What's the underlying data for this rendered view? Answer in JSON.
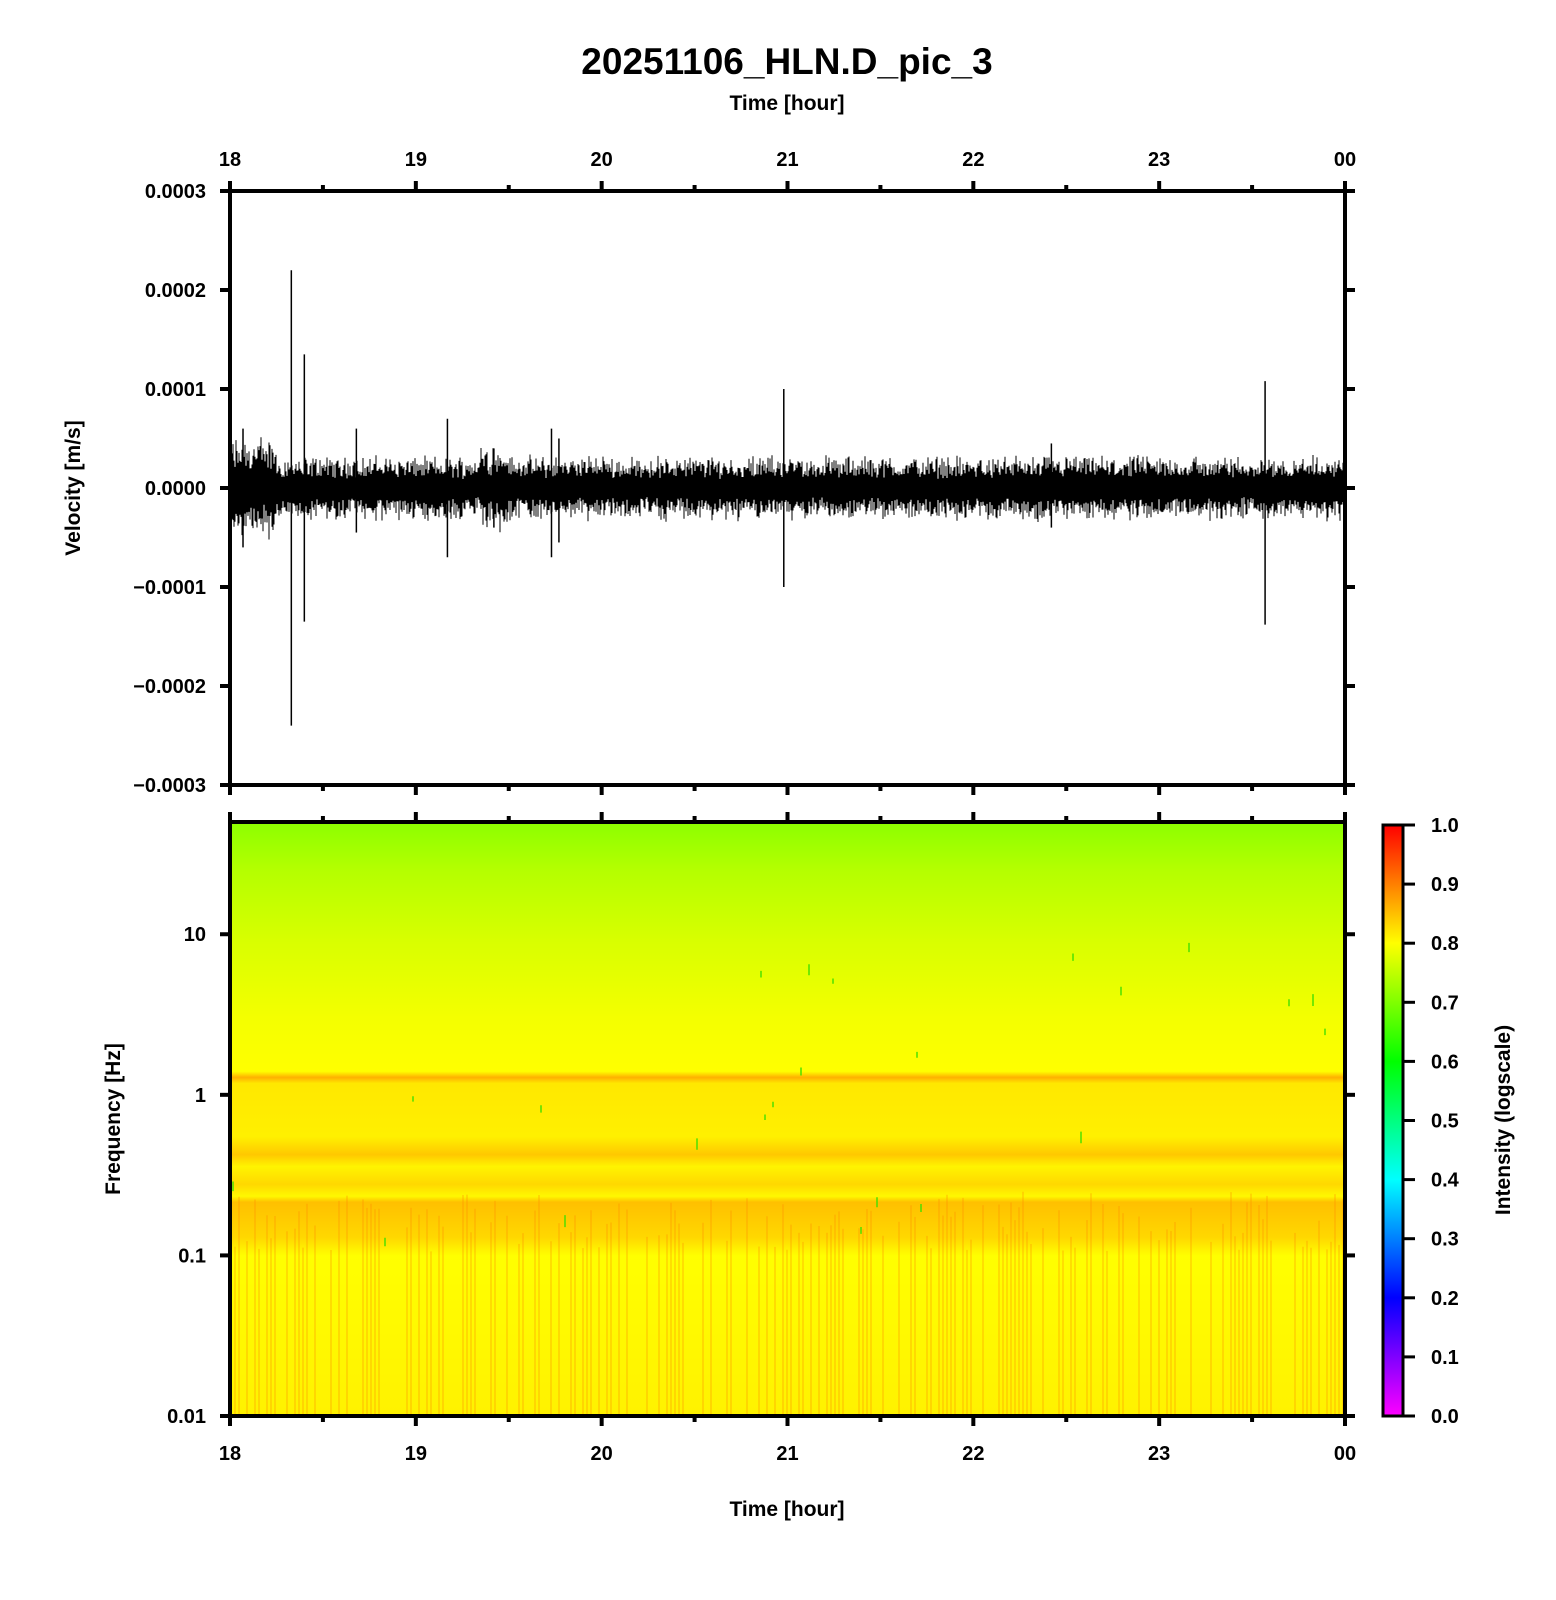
{
  "chart_data": [
    {
      "type": "line",
      "title": "20251106_HLN.D_pic_3",
      "xlabel_top": "Time [hour]",
      "ylabel": "Velocity [m/s]",
      "x_ticks": [
        "18",
        "19",
        "20",
        "21",
        "22",
        "23",
        "00"
      ],
      "x_range_hours": [
        18,
        24
      ],
      "ylim": [
        -0.0003,
        0.0003
      ],
      "y_ticks": [
        "0.0003",
        "0.0002",
        "0.0001",
        "0.0000",
        "−0.0001",
        "−0.0002",
        "−0.0003"
      ],
      "series": [
        {
          "background_amplitude": 2e-05,
          "spikes": [
            {
              "x": 18.33,
              "max": 0.00022,
              "min": -0.00024
            },
            {
              "x": 18.4,
              "max": 0.000135,
              "min": -0.000135
            },
            {
              "x": 18.07,
              "max": 6e-05,
              "min": -6e-05
            },
            {
              "x": 18.68,
              "max": 6e-05,
              "min": -4.5e-05
            },
            {
              "x": 19.17,
              "max": 7e-05,
              "min": -7e-05
            },
            {
              "x": 19.42,
              "max": 4e-05,
              "min": -4e-05
            },
            {
              "x": 19.73,
              "max": 6e-05,
              "min": -7e-05
            },
            {
              "x": 19.77,
              "max": 5e-05,
              "min": -5.5e-05
            },
            {
              "x": 20.98,
              "max": 0.0001,
              "min": -0.0001
            },
            {
              "x": 22.42,
              "max": 4.5e-05,
              "min": -4e-05
            },
            {
              "x": 23.57,
              "max": 0.000108,
              "min": -0.000138
            }
          ]
        }
      ]
    },
    {
      "type": "heatmap",
      "xlabel": "Time [hour]",
      "ylabel": "Frequency [Hz]",
      "x_ticks": [
        "18",
        "19",
        "20",
        "21",
        "22",
        "23",
        "00"
      ],
      "y_scale": "log",
      "ylim": [
        0.01,
        50
      ],
      "y_ticks": [
        "10",
        "1",
        "0.1",
        "0.01"
      ],
      "colorbar": {
        "label": "Intensity (logscale)",
        "range": [
          0.0,
          1.0
        ],
        "ticks": [
          "1.0",
          "0.9",
          "0.8",
          "0.7",
          "0.6",
          "0.5",
          "0.4",
          "0.3",
          "0.2",
          "0.1",
          "0.0"
        ],
        "colors": [
          "#ff00ff",
          "#0000ff",
          "#00ffff",
          "#00ff00",
          "#ffff00",
          "#ff0000"
        ]
      },
      "intensity_profile": [
        {
          "freq": 50,
          "intensity": 0.72
        },
        {
          "freq": 10,
          "intensity": 0.76
        },
        {
          "freq": 3,
          "intensity": 0.79
        },
        {
          "freq": 1.3,
          "intensity": 0.85
        },
        {
          "freq": 1,
          "intensity": 0.8
        },
        {
          "freq": 0.4,
          "intensity": 0.84
        },
        {
          "freq": 0.2,
          "intensity": 0.86
        },
        {
          "freq": 0.05,
          "intensity": 0.83
        },
        {
          "freq": 0.01,
          "intensity": 0.85
        }
      ]
    }
  ]
}
